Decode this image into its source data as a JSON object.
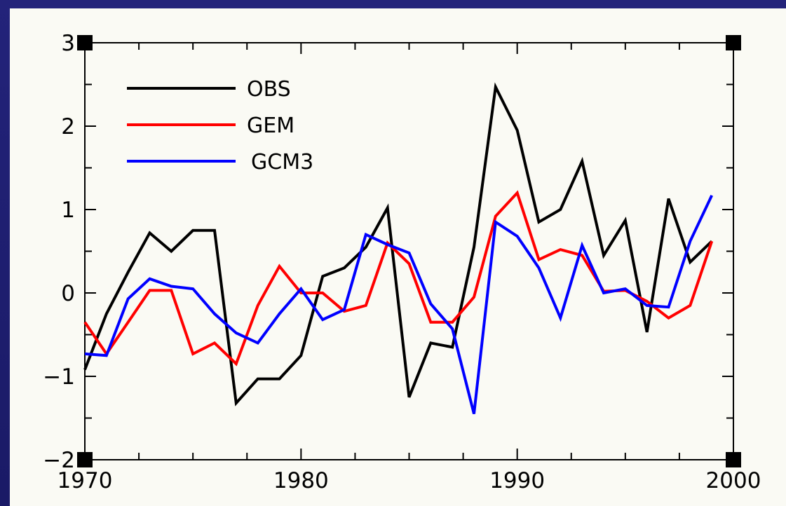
{
  "colors": {
    "background": "#1f1f6e",
    "panel": "#fafaf4",
    "axis": "#000000"
  },
  "chart_data": {
    "type": "line",
    "title": "",
    "xlabel": "",
    "ylabel": "",
    "xlim": [
      1970,
      2000
    ],
    "ylim": [
      -2,
      3
    ],
    "x_tick_labels": [
      "1970",
      "1980",
      "1990",
      "2000"
    ],
    "y_tick_labels": [
      "−2",
      "−1",
      "0",
      "1",
      "2",
      "3"
    ],
    "grid": false,
    "legend_position": "top-left",
    "x": [
      1970,
      1971,
      1972,
      1973,
      1974,
      1975,
      1976,
      1977,
      1978,
      1979,
      1980,
      1981,
      1982,
      1983,
      1984,
      1985,
      1986,
      1987,
      1988,
      1989,
      1990,
      1991,
      1992,
      1993,
      1994,
      1995,
      1996,
      1997,
      1998,
      1999
    ],
    "series": [
      {
        "name": "OBS",
        "color": "#000000",
        "values": [
          -0.92,
          -0.25,
          0.25,
          0.72,
          0.5,
          0.75,
          0.75,
          -1.32,
          -1.03,
          -1.03,
          -0.75,
          0.2,
          0.3,
          0.55,
          1.02,
          -1.25,
          -0.6,
          -0.65,
          0.55,
          2.47,
          1.95,
          0.85,
          1.0,
          1.58,
          0.45,
          0.87,
          -0.47,
          1.13,
          0.37,
          0.62
        ]
      },
      {
        "name": "GEM",
        "color": "#ff0000",
        "values": [
          -0.35,
          -0.73,
          -0.35,
          0.03,
          0.03,
          -0.73,
          -0.6,
          -0.85,
          -0.15,
          0.32,
          0.0,
          0.0,
          -0.22,
          -0.15,
          0.6,
          0.35,
          -0.35,
          -0.35,
          -0.05,
          0.92,
          1.2,
          0.4,
          0.52,
          0.45,
          0.02,
          0.03,
          -0.1,
          -0.3,
          -0.15,
          0.62
        ]
      },
      {
        "name": "GCM3",
        "color": "#0000ff",
        "values": [
          -0.73,
          -0.75,
          -0.07,
          0.17,
          0.08,
          0.05,
          -0.25,
          -0.48,
          -0.6,
          -0.25,
          0.05,
          -0.32,
          -0.2,
          0.7,
          0.58,
          0.48,
          -0.13,
          -0.43,
          -1.45,
          0.85,
          0.68,
          0.3,
          -0.3,
          0.57,
          0.0,
          0.05,
          -0.15,
          -0.17,
          0.62,
          1.17
        ]
      }
    ]
  }
}
